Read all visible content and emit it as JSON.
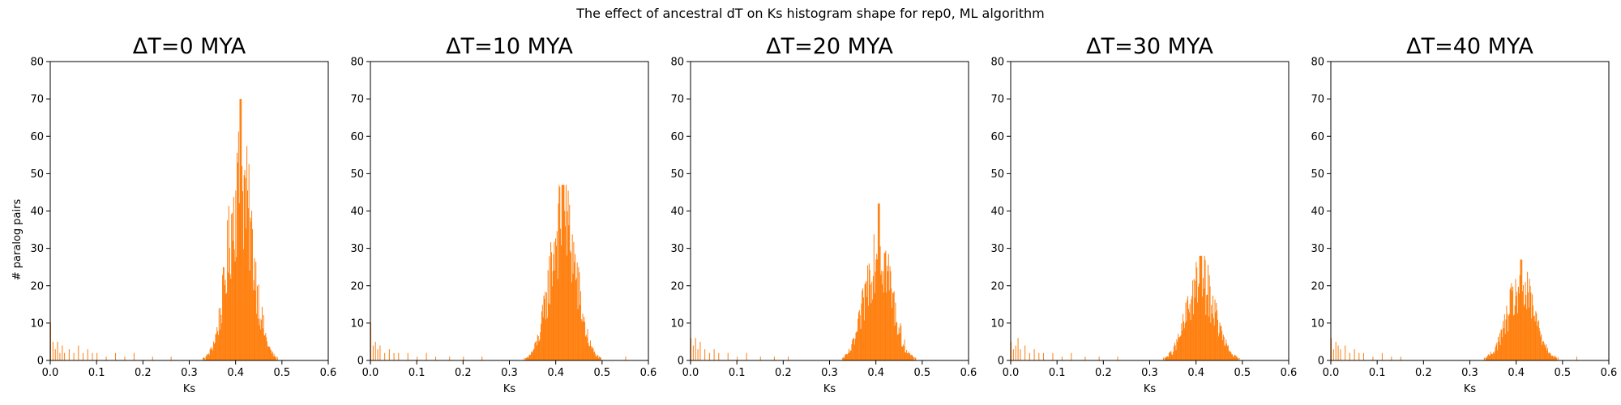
{
  "figure": {
    "suptitle": "The effect of ancestral dT on Ks histogram shape for rep0, ML algorithm",
    "ylabel": "# paralog pairs",
    "bar_color": "#ff7f0e"
  },
  "chart_data": [
    {
      "type": "bar",
      "title": "ΔT=0 MYA",
      "xlabel": "Ks",
      "ylabel": "# paralog pairs",
      "xlim": [
        0,
        0.6
      ],
      "ylim": [
        0,
        80
      ],
      "xticks": [
        "0.0",
        "0.1",
        "0.2",
        "0.3",
        "0.4",
        "0.5",
        "0.6"
      ],
      "yticks": [
        "0",
        "10",
        "20",
        "30",
        "40",
        "50",
        "60",
        "70",
        "80"
      ],
      "peak": {
        "center": 0.41,
        "sd": 0.027,
        "height": 47,
        "max": 70
      },
      "tail": [
        {
          "x": 0.0,
          "y": 10
        },
        {
          "x": 0.005,
          "y": 5
        },
        {
          "x": 0.01,
          "y": 3
        },
        {
          "x": 0.015,
          "y": 5
        },
        {
          "x": 0.02,
          "y": 2
        },
        {
          "x": 0.025,
          "y": 4
        },
        {
          "x": 0.03,
          "y": 2
        },
        {
          "x": 0.04,
          "y": 3
        },
        {
          "x": 0.05,
          "y": 2
        },
        {
          "x": 0.06,
          "y": 4
        },
        {
          "x": 0.07,
          "y": 2
        },
        {
          "x": 0.08,
          "y": 3
        },
        {
          "x": 0.09,
          "y": 2
        },
        {
          "x": 0.1,
          "y": 2
        },
        {
          "x": 0.12,
          "y": 1
        },
        {
          "x": 0.14,
          "y": 2
        },
        {
          "x": 0.16,
          "y": 1
        },
        {
          "x": 0.18,
          "y": 2
        },
        {
          "x": 0.22,
          "y": 1
        },
        {
          "x": 0.26,
          "y": 1
        }
      ]
    },
    {
      "type": "bar",
      "title": "ΔT=10 MYA",
      "xlabel": "Ks",
      "xlim": [
        0,
        0.6
      ],
      "ylim": [
        0,
        80
      ],
      "xticks": [
        "0.0",
        "0.1",
        "0.2",
        "0.3",
        "0.4",
        "0.5",
        "0.6"
      ],
      "yticks": [
        "0",
        "10",
        "20",
        "30",
        "40",
        "50",
        "60",
        "70",
        "80"
      ],
      "peak": {
        "center": 0.415,
        "sd": 0.028,
        "height": 38,
        "max": 47
      },
      "tail": [
        {
          "x": 0.0,
          "y": 10
        },
        {
          "x": 0.005,
          "y": 4
        },
        {
          "x": 0.01,
          "y": 5
        },
        {
          "x": 0.015,
          "y": 3
        },
        {
          "x": 0.02,
          "y": 4
        },
        {
          "x": 0.03,
          "y": 2
        },
        {
          "x": 0.04,
          "y": 3
        },
        {
          "x": 0.05,
          "y": 2
        },
        {
          "x": 0.06,
          "y": 2
        },
        {
          "x": 0.08,
          "y": 2
        },
        {
          "x": 0.1,
          "y": 1
        },
        {
          "x": 0.12,
          "y": 2
        },
        {
          "x": 0.14,
          "y": 1
        },
        {
          "x": 0.17,
          "y": 1
        },
        {
          "x": 0.2,
          "y": 1
        },
        {
          "x": 0.24,
          "y": 1
        },
        {
          "x": 0.55,
          "y": 1
        }
      ]
    },
    {
      "type": "bar",
      "title": "ΔT=20 MYA",
      "xlabel": "Ks",
      "xlim": [
        0,
        0.6
      ],
      "ylim": [
        0,
        80
      ],
      "xticks": [
        "0.0",
        "0.1",
        "0.2",
        "0.3",
        "0.4",
        "0.5",
        "0.6"
      ],
      "yticks": [
        "0",
        "10",
        "20",
        "30",
        "40",
        "50",
        "60",
        "70",
        "80"
      ],
      "peak": {
        "center": 0.405,
        "sd": 0.028,
        "height": 30,
        "max": 42
      },
      "tail": [
        {
          "x": 0.0,
          "y": 6
        },
        {
          "x": 0.005,
          "y": 4
        },
        {
          "x": 0.01,
          "y": 6
        },
        {
          "x": 0.015,
          "y": 3
        },
        {
          "x": 0.02,
          "y": 5
        },
        {
          "x": 0.03,
          "y": 3
        },
        {
          "x": 0.04,
          "y": 2
        },
        {
          "x": 0.05,
          "y": 3
        },
        {
          "x": 0.06,
          "y": 2
        },
        {
          "x": 0.08,
          "y": 2
        },
        {
          "x": 0.1,
          "y": 1
        },
        {
          "x": 0.12,
          "y": 2
        },
        {
          "x": 0.15,
          "y": 1
        },
        {
          "x": 0.18,
          "y": 1
        },
        {
          "x": 0.21,
          "y": 1
        }
      ]
    },
    {
      "type": "bar",
      "title": "ΔT=30 MYA",
      "xlabel": "Ks",
      "xlim": [
        0,
        0.6
      ],
      "ylim": [
        0,
        80
      ],
      "xticks": [
        "0.0",
        "0.1",
        "0.2",
        "0.3",
        "0.4",
        "0.5",
        "0.6"
      ],
      "yticks": [
        "0",
        "10",
        "20",
        "30",
        "40",
        "50",
        "60",
        "70",
        "80"
      ],
      "peak": {
        "center": 0.41,
        "sd": 0.03,
        "height": 21,
        "max": 28
      },
      "tail": [
        {
          "x": 0.0,
          "y": 5
        },
        {
          "x": 0.005,
          "y": 3
        },
        {
          "x": 0.01,
          "y": 4
        },
        {
          "x": 0.015,
          "y": 6
        },
        {
          "x": 0.02,
          "y": 3
        },
        {
          "x": 0.03,
          "y": 4
        },
        {
          "x": 0.04,
          "y": 2
        },
        {
          "x": 0.05,
          "y": 3
        },
        {
          "x": 0.06,
          "y": 2
        },
        {
          "x": 0.07,
          "y": 2
        },
        {
          "x": 0.09,
          "y": 2
        },
        {
          "x": 0.11,
          "y": 1
        },
        {
          "x": 0.13,
          "y": 2
        },
        {
          "x": 0.16,
          "y": 1
        },
        {
          "x": 0.19,
          "y": 1
        },
        {
          "x": 0.23,
          "y": 1
        }
      ]
    },
    {
      "type": "bar",
      "title": "ΔT=40 MYA",
      "xlabel": "Ks",
      "xlim": [
        0,
        0.6
      ],
      "ylim": [
        0,
        80
      ],
      "xticks": [
        "0.0",
        "0.1",
        "0.2",
        "0.3",
        "0.4",
        "0.5",
        "0.6"
      ],
      "yticks": [
        "0",
        "10",
        "20",
        "30",
        "40",
        "50",
        "60",
        "70",
        "80"
      ],
      "peak": {
        "center": 0.41,
        "sd": 0.03,
        "height": 19,
        "max": 27
      },
      "tail": [
        {
          "x": 0.0,
          "y": 6
        },
        {
          "x": 0.005,
          "y": 3
        },
        {
          "x": 0.01,
          "y": 5
        },
        {
          "x": 0.015,
          "y": 4
        },
        {
          "x": 0.02,
          "y": 3
        },
        {
          "x": 0.03,
          "y": 4
        },
        {
          "x": 0.04,
          "y": 2
        },
        {
          "x": 0.05,
          "y": 3
        },
        {
          "x": 0.06,
          "y": 2
        },
        {
          "x": 0.07,
          "y": 2
        },
        {
          "x": 0.09,
          "y": 1
        },
        {
          "x": 0.11,
          "y": 2
        },
        {
          "x": 0.13,
          "y": 1
        },
        {
          "x": 0.15,
          "y": 1
        },
        {
          "x": 0.53,
          "y": 1
        }
      ]
    }
  ]
}
